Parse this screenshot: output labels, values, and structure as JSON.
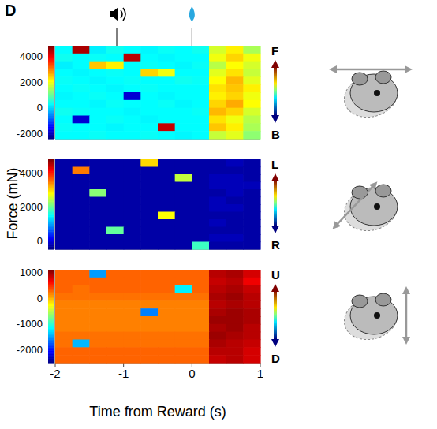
{
  "panel_label": "D",
  "y_label": "Force (mN)",
  "x_label": "Time from Reward (s)",
  "event_times": [
    -1.1,
    0
  ],
  "chart_data": [
    {
      "type": "heatmap",
      "time_bins": [
        -2,
        -1.75,
        -1.5,
        -1.25,
        -1,
        -0.75,
        -0.5,
        -0.25,
        0,
        0.25,
        0.5,
        0.75,
        1
      ],
      "xlim": [
        -2,
        1
      ],
      "xticks": [
        -2,
        -1,
        0,
        1
      ],
      "tick_labels": "y",
      "color_range": [
        -2400,
        4800
      ],
      "color_ticks": [
        4000,
        2000,
        0,
        -2000
      ],
      "annotations": [
        "F",
        "B"
      ],
      "cells": [
        [
          300,
          4500,
          200,
          400,
          300,
          250,
          350,
          300,
          400,
          1800,
          2200,
          1500
        ],
        [
          400,
          300,
          350,
          300,
          4400,
          300,
          250,
          300,
          300,
          2000,
          2400,
          2000
        ],
        [
          200,
          300,
          2500,
          2200,
          300,
          350,
          300,
          250,
          350,
          1600,
          2100,
          1800
        ],
        [
          300,
          250,
          300,
          350,
          300,
          2400,
          2000,
          300,
          300,
          1900,
          2300,
          1700
        ],
        [
          350,
          300,
          250,
          300,
          350,
          300,
          300,
          400,
          350,
          2100,
          2600,
          1900
        ],
        [
          300,
          350,
          300,
          250,
          300,
          350,
          300,
          300,
          300,
          2300,
          2500,
          2200
        ],
        [
          250,
          300,
          350,
          300,
          -1800,
          300,
          250,
          300,
          300,
          2200,
          2400,
          2000
        ],
        [
          300,
          300,
          250,
          350,
          300,
          300,
          350,
          250,
          300,
          2400,
          2700,
          2100
        ],
        [
          400,
          350,
          300,
          300,
          250,
          300,
          300,
          300,
          350,
          2600,
          2400,
          1800
        ],
        [
          300,
          -1800,
          300,
          350,
          300,
          250,
          300,
          300,
          300,
          2300,
          2000,
          1600
        ],
        [
          350,
          300,
          300,
          250,
          300,
          300,
          4300,
          300,
          300,
          2500,
          2200,
          1500
        ],
        [
          300,
          300,
          350,
          300,
          300,
          350,
          300,
          250,
          300,
          1700,
          1900,
          1300
        ]
      ]
    },
    {
      "type": "heatmap",
      "time_bins": [
        -2,
        -1.75,
        -1.5,
        -1.25,
        -1,
        -0.75,
        -0.5,
        -0.25,
        0,
        0.25,
        0.5,
        0.75,
        1
      ],
      "xlim": [
        -2,
        1
      ],
      "xticks": [
        -2,
        -1,
        0,
        1
      ],
      "tick_labels": "y",
      "color_range": [
        -500,
        4800
      ],
      "color_ticks": [
        4000,
        2000,
        0
      ],
      "annotations": [
        "L",
        "R"
      ],
      "cells": [
        [
          -300,
          -300,
          -300,
          -300,
          -300,
          3000,
          -300,
          -300,
          -300,
          -300,
          -200,
          -300
        ],
        [
          -300,
          3500,
          -300,
          -300,
          -300,
          -300,
          -300,
          -300,
          -300,
          -300,
          -300,
          -300
        ],
        [
          -300,
          -300,
          -300,
          -300,
          -300,
          -300,
          -300,
          2500,
          -300,
          -200,
          -200,
          -300
        ],
        [
          -300,
          -300,
          -300,
          -300,
          -300,
          -300,
          -300,
          -300,
          -300,
          -200,
          -200,
          -200
        ],
        [
          -300,
          -300,
          2200,
          -300,
          -300,
          -300,
          -300,
          -300,
          -300,
          -300,
          -200,
          -300
        ],
        [
          -300,
          -300,
          -300,
          -300,
          -300,
          -300,
          -300,
          -300,
          -300,
          -200,
          -300,
          -300
        ],
        [
          -300,
          -300,
          -300,
          -300,
          -300,
          -300,
          -300,
          -300,
          -300,
          -200,
          -200,
          -300
        ],
        [
          -300,
          -300,
          -300,
          -300,
          -300,
          -300,
          2800,
          -300,
          -300,
          -300,
          -300,
          -300
        ],
        [
          -300,
          -300,
          -300,
          -300,
          -300,
          -300,
          -300,
          -300,
          -300,
          -200,
          -300,
          -300
        ],
        [
          -300,
          -300,
          -300,
          2000,
          -300,
          -300,
          -300,
          -300,
          -300,
          -300,
          -300,
          -300
        ],
        [
          -300,
          -300,
          -300,
          -300,
          -300,
          -300,
          -300,
          -300,
          -300,
          -200,
          -200,
          -300
        ],
        [
          -300,
          -300,
          -300,
          -300,
          -300,
          -300,
          -300,
          -300,
          1800,
          -300,
          -300,
          -300
        ]
      ]
    },
    {
      "type": "heatmap",
      "time_bins": [
        -2,
        -1.75,
        -1.5,
        -1.25,
        -1,
        -0.75,
        -0.5,
        -0.25,
        0,
        0.25,
        0.5,
        0.75,
        1
      ],
      "xlim": [
        -2,
        1
      ],
      "xticks": [
        -2,
        -1,
        0,
        1
      ],
      "tick_labels": true,
      "color_range": [
        -2500,
        1100
      ],
      "color_ticks": [
        1000,
        0,
        -1000,
        -2000
      ],
      "annotations": [
        "U",
        "D"
      ],
      "cells": [
        [
          300,
          300,
          -1500,
          300,
          300,
          300,
          300,
          300,
          300,
          900,
          950,
          800
        ],
        [
          300,
          300,
          300,
          300,
          300,
          300,
          300,
          300,
          300,
          850,
          900,
          700
        ],
        [
          300,
          250,
          300,
          300,
          300,
          300,
          300,
          -1200,
          300,
          900,
          950,
          850
        ],
        [
          250,
          250,
          250,
          250,
          250,
          250,
          250,
          250,
          250,
          950,
          1000,
          900
        ],
        [
          200,
          200,
          200,
          200,
          200,
          200,
          200,
          200,
          200,
          900,
          950,
          900
        ],
        [
          200,
          200,
          200,
          200,
          200,
          -1600,
          200,
          200,
          200,
          950,
          1000,
          950
        ],
        [
          200,
          200,
          200,
          200,
          200,
          200,
          200,
          200,
          200,
          1000,
          1000,
          950
        ],
        [
          200,
          200,
          200,
          200,
          200,
          200,
          200,
          200,
          200,
          950,
          1000,
          900
        ],
        [
          250,
          250,
          250,
          250,
          250,
          250,
          250,
          250,
          250,
          1000,
          950,
          900
        ],
        [
          250,
          -1400,
          250,
          250,
          250,
          250,
          250,
          250,
          250,
          950,
          900,
          850
        ],
        [
          300,
          300,
          300,
          300,
          300,
          300,
          300,
          300,
          300,
          900,
          900,
          800
        ],
        [
          300,
          300,
          300,
          300,
          300,
          300,
          300,
          300,
          300,
          850,
          900,
          800
        ]
      ]
    }
  ]
}
